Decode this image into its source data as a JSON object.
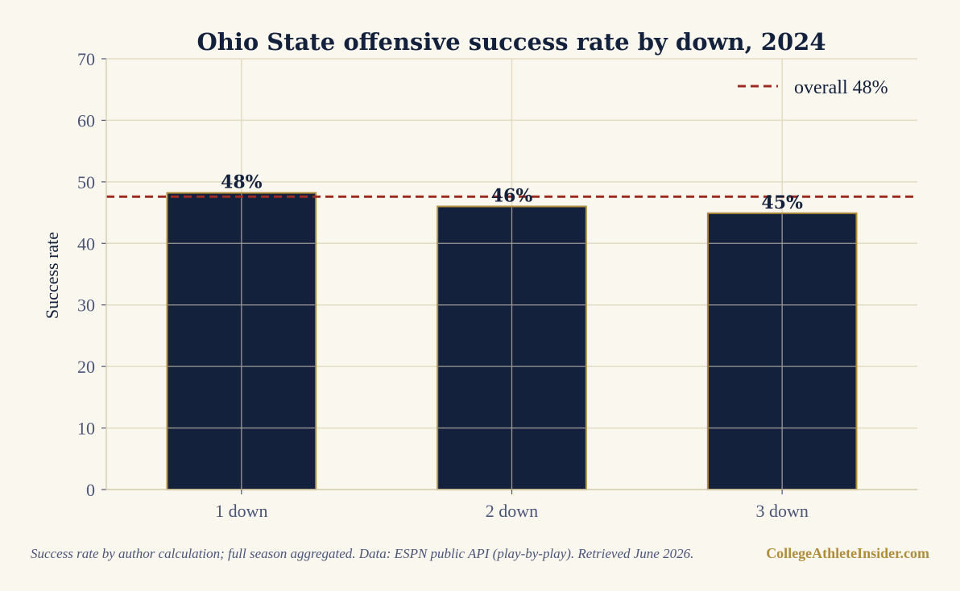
{
  "chart_data": {
    "type": "bar",
    "title": "Ohio State offensive success rate by down, 2024",
    "xlabel": "",
    "ylabel": "Success rate",
    "categories": [
      "1 down",
      "2 down",
      "3 down"
    ],
    "values": [
      48.2,
      46.0,
      44.9
    ],
    "value_labels": [
      "48%",
      "46%",
      "45%"
    ],
    "ylim": [
      0,
      70
    ],
    "yticks": [
      0,
      10,
      20,
      30,
      40,
      50,
      60,
      70
    ],
    "reference_line": {
      "value": 47.6,
      "label": "overall 48%"
    },
    "grid": true,
    "legend_position": "top-right",
    "colors": {
      "bar": "#14213d",
      "bar_edge": "#b08d3a",
      "reference": "#9b2c22",
      "grid": "#e2dcc3",
      "background": "#faf7ee"
    }
  },
  "footer": {
    "note": "Success rate by author calculation; full season aggregated.  Data: ESPN public API (play-by-play). Retrieved June 2026.",
    "brand": "CollegeAthleteInsider.com"
  }
}
